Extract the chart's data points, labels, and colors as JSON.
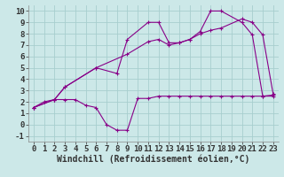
{
  "xlabel": "Windchill (Refroidissement éolien,°C)",
  "background_color": "#cce8e8",
  "line_color": "#880088",
  "xlim": [
    -0.5,
    23.5
  ],
  "ylim": [
    -1.5,
    10.5
  ],
  "xticks": [
    0,
    1,
    2,
    3,
    4,
    5,
    6,
    7,
    8,
    9,
    10,
    11,
    12,
    13,
    14,
    15,
    16,
    17,
    18,
    19,
    20,
    21,
    22,
    23
  ],
  "yticks": [
    -1,
    0,
    1,
    2,
    3,
    4,
    5,
    6,
    7,
    8,
    9,
    10
  ],
  "series1_x": [
    0,
    1,
    2,
    3,
    4,
    5,
    6,
    7,
    8,
    9,
    10,
    11,
    12,
    13,
    14,
    15,
    16,
    17,
    18,
    19,
    20,
    21,
    22,
    23
  ],
  "series1_y": [
    1.5,
    2.0,
    2.2,
    2.2,
    2.2,
    1.7,
    1.5,
    0.0,
    -0.5,
    -0.5,
    2.3,
    2.3,
    2.5,
    2.5,
    2.5,
    2.5,
    2.5,
    2.5,
    2.5,
    2.5,
    2.5,
    2.5,
    2.5,
    2.5
  ],
  "series2_x": [
    0,
    2,
    3,
    6,
    8,
    9,
    11,
    12,
    13,
    14,
    15,
    16,
    17,
    18,
    20,
    21,
    22,
    23
  ],
  "series2_y": [
    1.5,
    2.2,
    3.3,
    5.0,
    4.5,
    7.5,
    9.0,
    9.0,
    7.2,
    7.2,
    7.5,
    8.2,
    10.0,
    10.0,
    9.0,
    7.9,
    2.5,
    2.6
  ],
  "series3_x": [
    0,
    2,
    3,
    6,
    9,
    11,
    12,
    13,
    14,
    15,
    16,
    17,
    18,
    20,
    21,
    22,
    23
  ],
  "series3_y": [
    1.5,
    2.2,
    3.3,
    5.0,
    6.2,
    7.3,
    7.5,
    7.0,
    7.2,
    7.5,
    8.0,
    8.3,
    8.5,
    9.3,
    9.0,
    7.9,
    2.7
  ],
  "font_family": "monospace",
  "grid_color": "#a8cece",
  "tick_fontsize": 6.5,
  "label_fontsize": 7
}
